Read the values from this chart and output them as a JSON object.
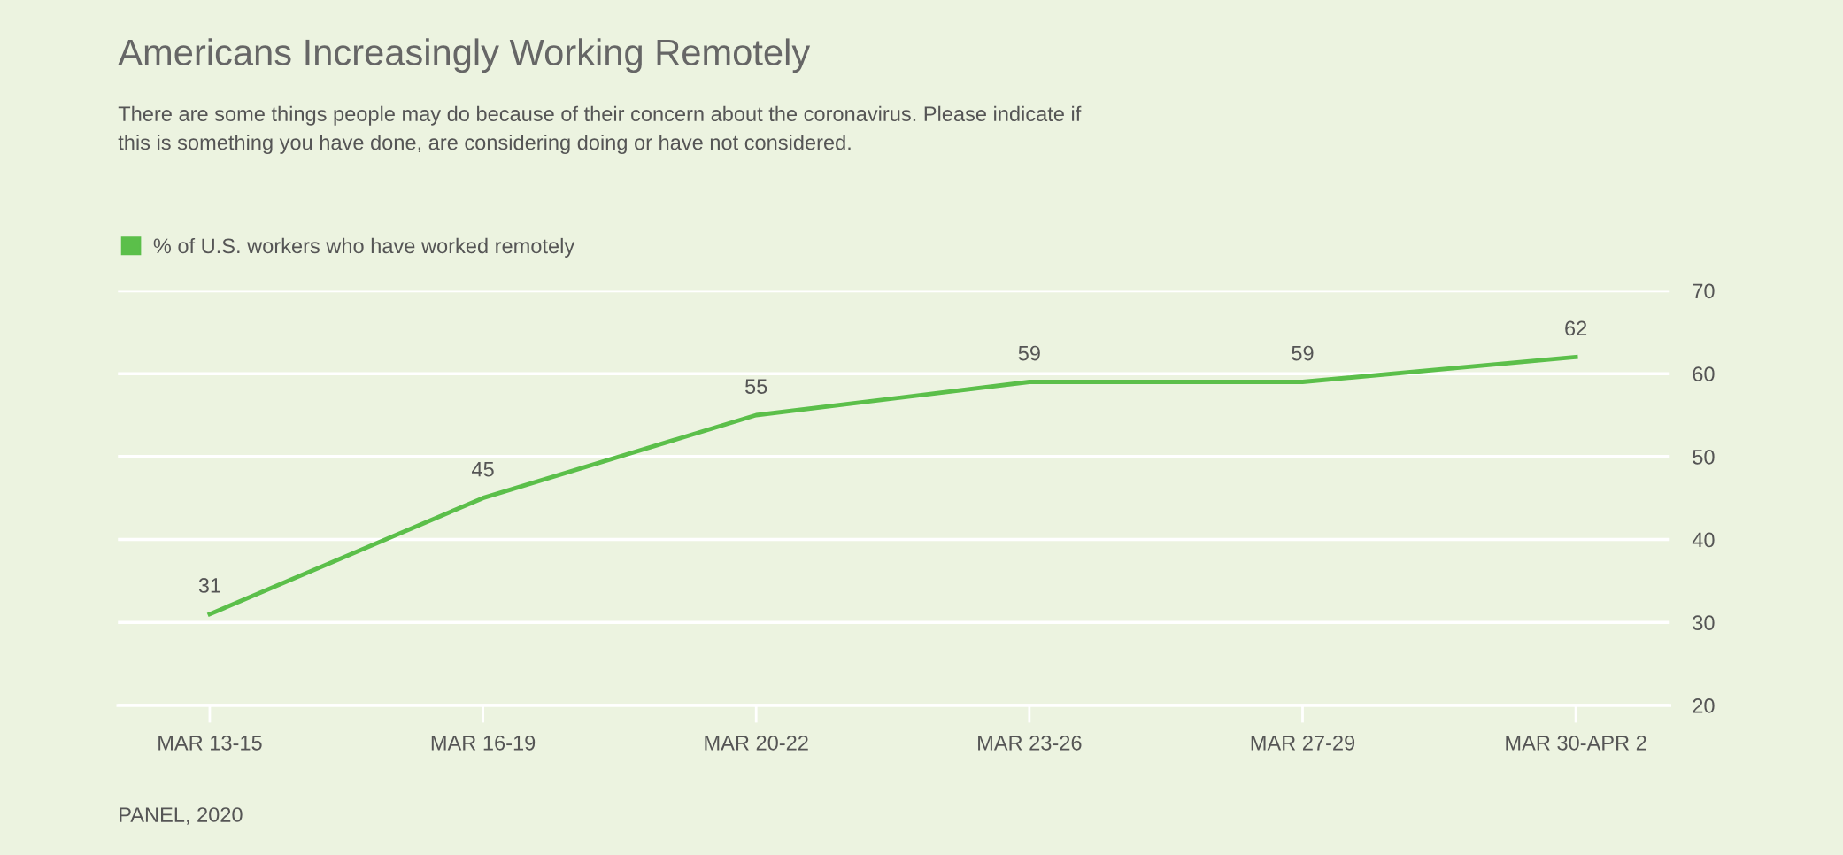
{
  "chart_data": {
    "type": "line",
    "title": "Americans Increasingly Working Remotely",
    "subtitle": "There are some things people may do because of their concern about the coronavirus. Please indicate if\nthis is something you have done, are considering doing or have not considered.",
    "categories": [
      "MAR 13-15",
      "MAR 16-19",
      "MAR 20-22",
      "MAR 23-26",
      "MAR 27-29",
      "MAR 30-APR 2"
    ],
    "series": [
      {
        "name": "% of U.S. workers who have worked remotely",
        "color": "#5bbf4a",
        "values": [
          31,
          45,
          55,
          59,
          59,
          62
        ]
      }
    ],
    "ylim": [
      20,
      70
    ],
    "yticks": [
      20,
      30,
      40,
      50,
      60,
      70
    ],
    "grid": "y",
    "legend": "top left",
    "data_labels": true,
    "marker": "none",
    "annotations": [
      "PANEL, 2020"
    ]
  }
}
